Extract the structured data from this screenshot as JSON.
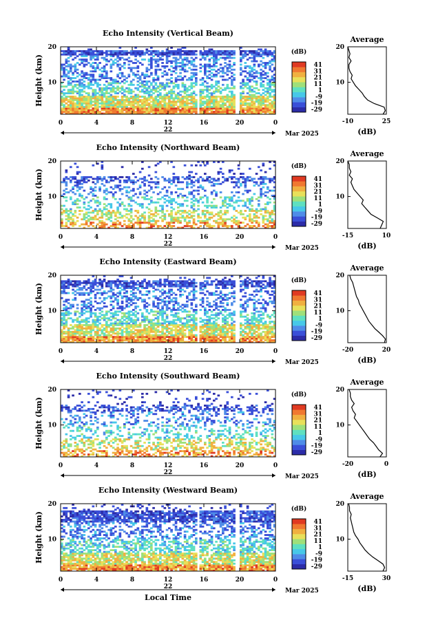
{
  "figure": {
    "x_label": "Local Time",
    "month_label": "Mar 2025",
    "day_label": "22",
    "height_label": "Height (km)",
    "avg_title": "Average",
    "avg_unit": "(dB)",
    "colorbar_unit": "(dB)",
    "colorbar_ticks": [
      "41",
      "31",
      "21",
      "11",
      "1",
      "-9",
      "-19",
      "-29"
    ],
    "x_ticks": [
      "0",
      "4",
      "8",
      "12",
      "16",
      "20",
      "0"
    ],
    "y_ticks": [
      "20",
      "10"
    ]
  },
  "chart_data": [
    {
      "type": "heatmap",
      "title": "Echo Intensity (Vertical Beam)",
      "xlabel": "",
      "ylabel": "Height (km)",
      "xlim": [
        0,
        24
      ],
      "ylim": [
        1,
        20
      ],
      "zlim": [
        -29,
        41
      ],
      "colorbar_label": "(dB)",
      "data_gaps_hours": [
        15.4,
        19.8
      ],
      "top_layer_km": [
        17.5,
        19.0
      ],
      "profile": {
        "type": "line",
        "title": "Average",
        "xlabel": "(dB)",
        "xticks": [
          "-10",
          "25"
        ],
        "xlim": [
          -10,
          25
        ],
        "height_km": [
          1,
          2,
          3,
          4,
          5,
          6,
          7,
          8,
          9,
          10,
          11,
          12,
          13,
          14,
          15,
          16,
          17,
          18,
          19,
          20
        ],
        "avg_db": [
          22,
          24,
          23,
          14,
          8,
          5,
          3,
          0,
          -3,
          -5,
          -7,
          -6,
          -8,
          -9,
          -9,
          -7,
          -9,
          -8,
          -9,
          -10
        ]
      }
    },
    {
      "type": "heatmap",
      "title": "Echo Intensity (Northward Beam)",
      "xlabel": "",
      "ylabel": "Height (km)",
      "xlim": [
        0,
        24
      ],
      "ylim": [
        1,
        20
      ],
      "zlim": [
        -29,
        41
      ],
      "colorbar_label": "(dB)",
      "data_gaps_hours": [],
      "top_layer_km": [
        14.0,
        15.5
      ],
      "profile": {
        "type": "line",
        "title": "Average",
        "xlabel": "(dB)",
        "xticks": [
          "-15",
          "10"
        ],
        "xlim": [
          -15,
          10
        ],
        "height_km": [
          1,
          2,
          3,
          4,
          5,
          6,
          7,
          8,
          9,
          10,
          11,
          12,
          13,
          14,
          15,
          16,
          17,
          18,
          19,
          20
        ],
        "avg_db": [
          6,
          7,
          8,
          4,
          0,
          -2,
          -4,
          -6,
          -5,
          -7,
          -9,
          -11,
          -12,
          -13,
          -12,
          -14,
          -13,
          -14,
          -14,
          -15
        ]
      }
    },
    {
      "type": "heatmap",
      "title": "Echo Intensity (Eastward Beam)",
      "xlabel": "",
      "ylabel": "Height (km)",
      "xlim": [
        0,
        24
      ],
      "ylim": [
        1,
        20
      ],
      "zlim": [
        -29,
        41
      ],
      "colorbar_label": "(dB)",
      "data_gaps_hours": [
        15.4,
        19.8
      ],
      "top_layer_km": [
        16.5,
        18.5
      ],
      "profile": {
        "type": "line",
        "title": "Average",
        "xlabel": "(dB)",
        "xticks": [
          "-20",
          "20"
        ],
        "xlim": [
          -20,
          20
        ],
        "height_km": [
          1,
          2,
          3,
          4,
          5,
          6,
          7,
          8,
          9,
          10,
          11,
          12,
          13,
          14,
          15,
          16,
          17,
          18,
          19,
          20
        ],
        "avg_db": [
          18,
          19,
          16,
          12,
          8,
          5,
          2,
          0,
          -2,
          -4,
          -6,
          -8,
          -9,
          -11,
          -12,
          -13,
          -14,
          -15,
          -17,
          -18
        ]
      }
    },
    {
      "type": "heatmap",
      "title": "Echo Intensity (Southward Beam)",
      "xlabel": "",
      "ylabel": "Height (km)",
      "xlim": [
        0,
        24
      ],
      "ylim": [
        1,
        20
      ],
      "zlim": [
        -29,
        41
      ],
      "colorbar_label": "(dB)",
      "data_gaps_hours": [],
      "top_layer_km": [
        14.0,
        15.5
      ],
      "profile": {
        "type": "line",
        "title": "Average",
        "xlabel": "(dB)",
        "xticks": [
          "-20",
          "0"
        ],
        "xlim": [
          -20,
          10
        ],
        "height_km": [
          1,
          2,
          3,
          4,
          5,
          6,
          7,
          8,
          9,
          10,
          11,
          12,
          13,
          14,
          15,
          16,
          17,
          18,
          19,
          20
        ],
        "avg_db": [
          5,
          7,
          4,
          2,
          0,
          -3,
          -5,
          -7,
          -9,
          -11,
          -13,
          -15,
          -14,
          -16,
          -17,
          -15,
          -17,
          -18,
          -18,
          -19
        ]
      }
    },
    {
      "type": "heatmap",
      "title": "Echo Intensity (Westward Beam)",
      "xlabel": "Local Time",
      "ylabel": "Height (km)",
      "xlim": [
        0,
        24
      ],
      "ylim": [
        1,
        20
      ],
      "zlim": [
        -29,
        41
      ],
      "colorbar_label": "(dB)",
      "data_gaps_hours": [
        15.4,
        19.8
      ],
      "top_layer_km": [
        15.0,
        18.0
      ],
      "profile": {
        "type": "line",
        "title": "Average",
        "xlabel": "(dB)",
        "xticks": [
          "-15",
          "30"
        ],
        "xlim": [
          -15,
          30
        ],
        "height_km": [
          1,
          2,
          3,
          4,
          5,
          6,
          7,
          8,
          9,
          10,
          11,
          12,
          13,
          14,
          15,
          16,
          17,
          18,
          19,
          20
        ],
        "avg_db": [
          26,
          28,
          26,
          20,
          14,
          9,
          5,
          2,
          -1,
          -3,
          -6,
          -8,
          -9,
          -10,
          -11,
          -12,
          -11,
          -13,
          -13,
          -14
        ]
      }
    }
  ],
  "colors": {
    "scale": [
      "#2c2ca8",
      "#3a4fd8",
      "#4f8ce8",
      "#47c8e8",
      "#5fe0c0",
      "#9fe07a",
      "#e8e05a",
      "#f0b040",
      "#f07830",
      "#e03a22"
    ],
    "axis": "#000000",
    "background": "#ffffff"
  }
}
